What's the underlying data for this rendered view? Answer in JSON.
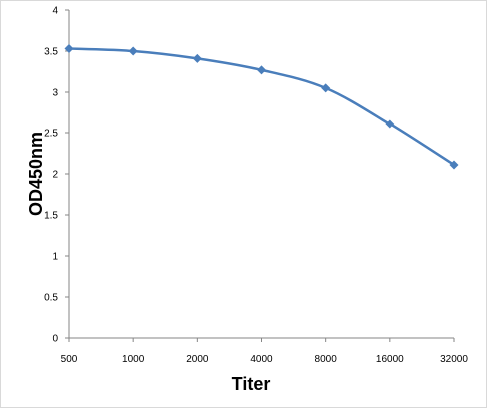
{
  "chart_data": {
    "type": "line",
    "title": "",
    "xlabel": "Titer",
    "ylabel": "OD450nm",
    "categories": [
      "500",
      "1000",
      "2000",
      "4000",
      "8000",
      "16000",
      "32000"
    ],
    "series": [
      {
        "values": [
          3.53,
          3.5,
          3.41,
          3.27,
          3.05,
          2.61,
          2.11
        ],
        "color": "#4a7ebb",
        "marker": "diamond"
      }
    ],
    "ylim": [
      0,
      4
    ],
    "yticks": [
      "0",
      "0.5",
      "1",
      "1.5",
      "2",
      "2.5",
      "3",
      "3.5",
      "4"
    ],
    "grid": false,
    "legend": "none"
  }
}
